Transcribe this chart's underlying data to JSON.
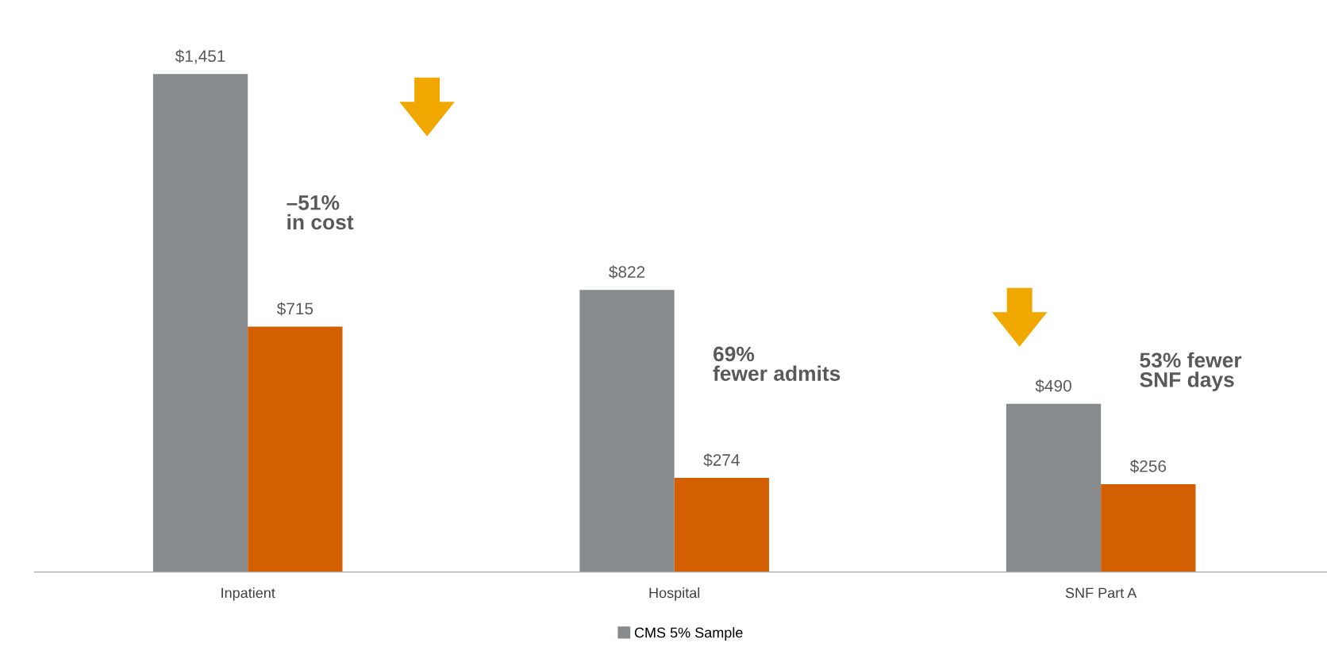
{
  "chart_data": {
    "type": "bar",
    "categories": [
      "Inpatient",
      "Hospital",
      "SNF Part A"
    ],
    "series": [
      {
        "name": "CMS 5% Sample",
        "color": "#888b8d",
        "values": [
          1451,
          822,
          490
        ],
        "value_labels": [
          "$1,451",
          "$822",
          "$490"
        ]
      },
      {
        "color": "#d45f00",
        "values": [
          715,
          274,
          256
        ],
        "value_labels": [
          "$715",
          "$274",
          "$256"
        ]
      }
    ],
    "annotations": [
      "–51%\nin cost",
      "69%\nfewer admits",
      "53% fewer\nSNF days"
    ],
    "legend": "bottom",
    "grid": false
  }
}
